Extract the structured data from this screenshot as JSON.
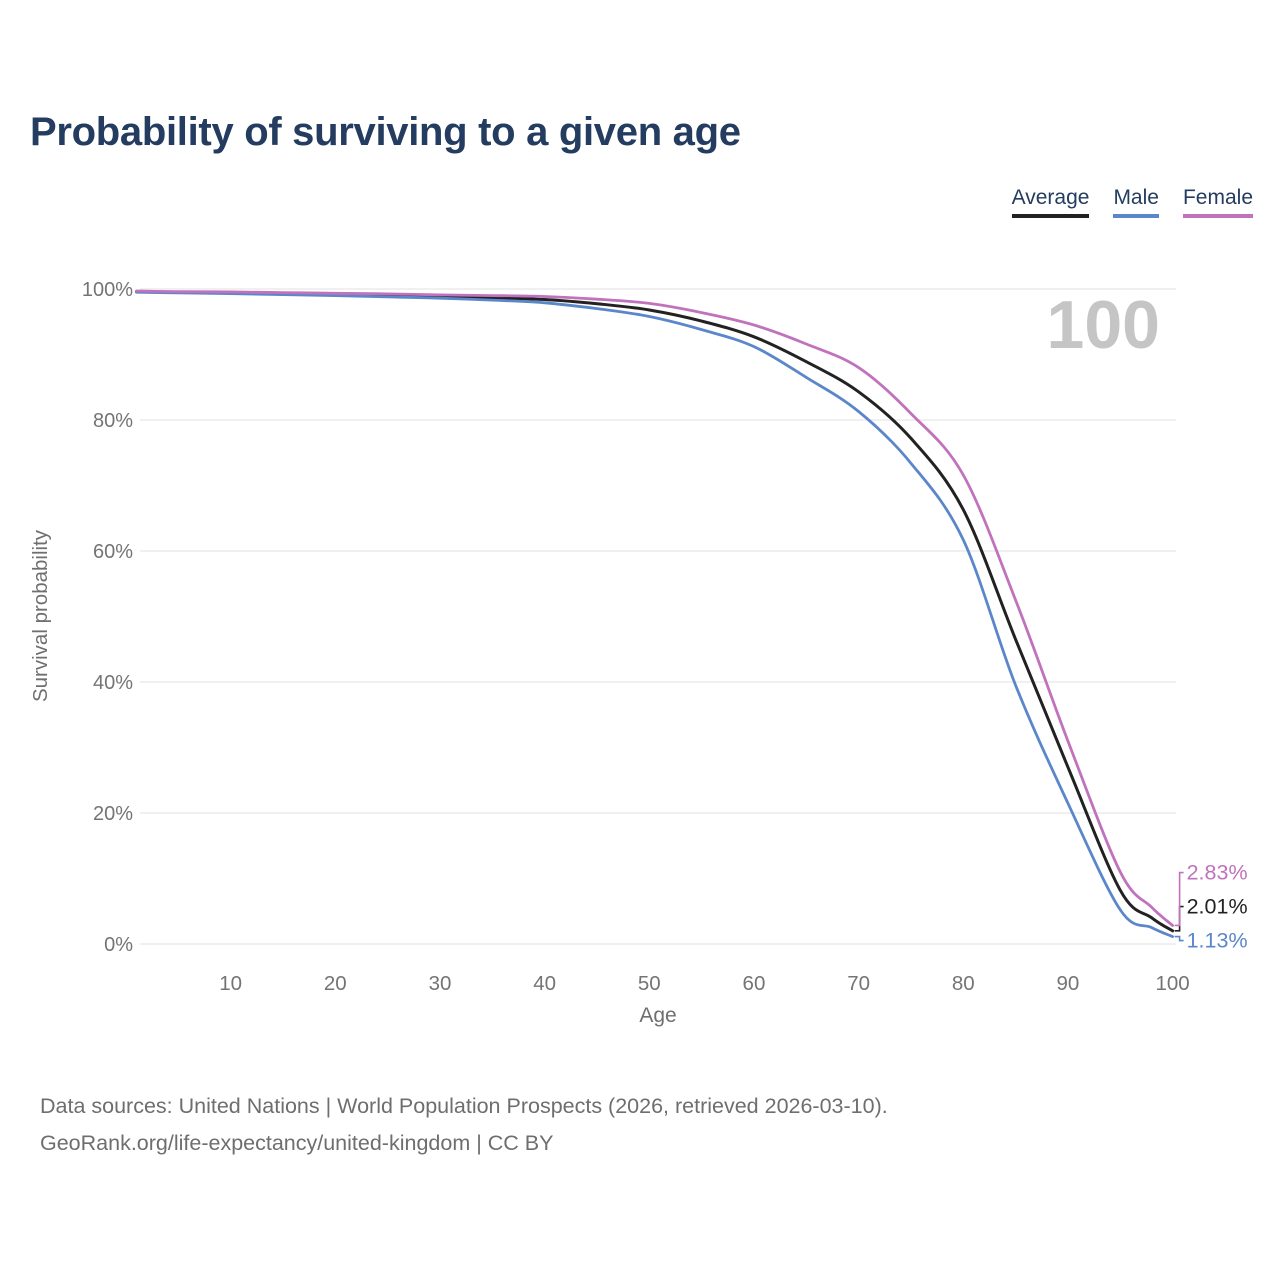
{
  "title": "Probability of surviving to a given age",
  "legend": [
    {
      "label": "Average",
      "color": "#222222"
    },
    {
      "label": "Male",
      "color": "#5b87ca"
    },
    {
      "label": "Female",
      "color": "#c172bd"
    }
  ],
  "chart_data": {
    "type": "line",
    "title": "Probability of surviving to a given age",
    "xlabel": "Age",
    "ylabel": "Survival probability",
    "watermark": "100",
    "xlim": [
      0,
      100
    ],
    "ylim": [
      0,
      100
    ],
    "grid": "horizontal",
    "legend_position": "top-right",
    "x_ticks": [
      10,
      20,
      30,
      40,
      50,
      60,
      70,
      80,
      90,
      100
    ],
    "y_tick_values": [
      0,
      20,
      40,
      60,
      80,
      100
    ],
    "y_tick_labels": [
      "0%",
      "20%",
      "40%",
      "60%",
      "80%",
      "100%"
    ],
    "ages": [
      1,
      5,
      10,
      15,
      20,
      25,
      30,
      35,
      40,
      45,
      50,
      55,
      60,
      65,
      70,
      75,
      80,
      85,
      90,
      95,
      98,
      100
    ],
    "series": [
      {
        "name": "Average",
        "color": "#222222",
        "end_label": "2.01%",
        "values": [
          99.6,
          99.5,
          99.4,
          99.3,
          99.2,
          99.05,
          98.85,
          98.65,
          98.4,
          97.75,
          96.8,
          95.1,
          92.7,
          88.9,
          84.3,
          77.2,
          66.3,
          46.5,
          27.0,
          8.2,
          4.0,
          2.01
        ]
      },
      {
        "name": "Male",
        "color": "#5b87ca",
        "end_label": "1.13%",
        "values": [
          99.5,
          99.4,
          99.3,
          99.15,
          99.0,
          98.8,
          98.6,
          98.3,
          97.9,
          97.0,
          95.8,
          93.8,
          91.2,
          86.5,
          81.3,
          73.4,
          61.7,
          39.5,
          21.5,
          5.2,
          2.5,
          1.13
        ]
      },
      {
        "name": "Female",
        "color": "#c172bd",
        "end_label": "2.83%",
        "values": [
          99.7,
          99.6,
          99.55,
          99.45,
          99.35,
          99.25,
          99.1,
          99.0,
          98.85,
          98.45,
          97.8,
          96.4,
          94.5,
          91.6,
          88.0,
          81.0,
          71.6,
          52.5,
          31.0,
          11.0,
          5.6,
          2.83
        ]
      }
    ]
  },
  "footer": {
    "line1": "Data sources: United Nations | World Population Prospects (2026, retrieved 2026-03-10).",
    "line2": "GeoRank.org/life-expectancy/united-kingdom | CC BY"
  }
}
